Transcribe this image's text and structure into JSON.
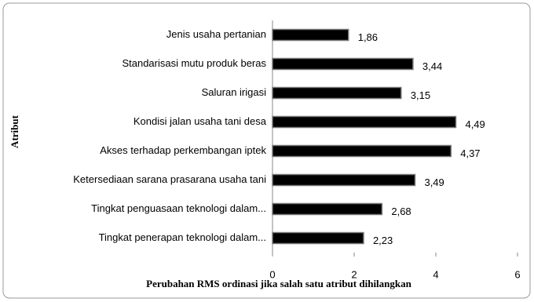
{
  "chart_data": {
    "type": "bar",
    "orientation": "horizontal",
    "x_label": "Perubahan RMS ordinasi jika salah satu atribut dihilangkan",
    "y_label": "Atribut",
    "categories": [
      "Jenis usaha pertanian",
      "Standarisasi mutu produk beras",
      "Saluran irigasi",
      "Kondisi jalan usaha tani desa",
      "Akses terhadap perkembangan iptek",
      "Ketersediaan sarana prasarana usaha tani",
      "Tingkat penguasaan teknologi dalam...",
      "Tingkat penerapan teknologi dalam..."
    ],
    "values": [
      1.86,
      3.44,
      3.15,
      4.49,
      4.37,
      3.49,
      2.68,
      2.23
    ],
    "value_labels": [
      "1,86",
      "3,44",
      "3,15",
      "4,49",
      "4,37",
      "3,49",
      "2,68",
      "2,23"
    ],
    "color": "#000000",
    "xlim": [
      0,
      6
    ],
    "xticks": [
      0,
      2,
      4,
      6
    ],
    "grid": false
  }
}
